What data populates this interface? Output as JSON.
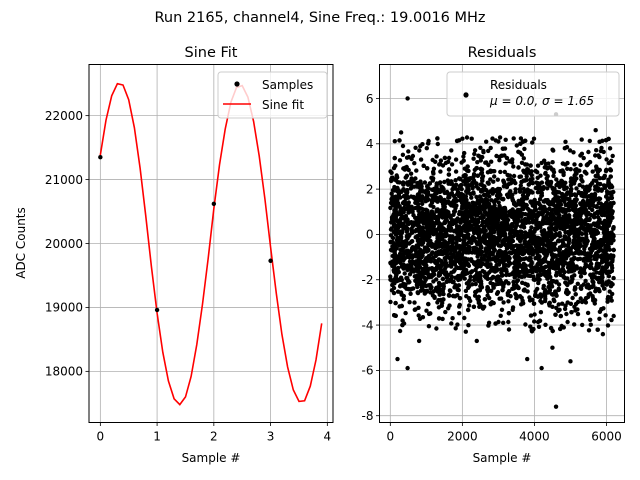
{
  "suptitle": "Run 2165, channel4, Sine Freq.: 19.0016 MHz",
  "chart_data": [
    {
      "type": "line",
      "title": "Sine Fit",
      "xlabel": "Sample #",
      "ylabel": "ADC Counts",
      "xlim": [
        -0.2,
        4.1
      ],
      "ylim": [
        17200,
        22800
      ],
      "xticks": [
        0,
        1,
        2,
        3,
        4
      ],
      "yticks": [
        18000,
        19000,
        20000,
        21000,
        22000
      ],
      "grid": true,
      "legend_position": "upper right",
      "series": [
        {
          "name": "Samples",
          "kind": "scatter",
          "color": "#000000",
          "x": [
            0,
            1,
            2,
            3
          ],
          "y": [
            21350,
            18960,
            20620,
            19730
          ]
        },
        {
          "name": "Sine fit",
          "kind": "line",
          "color": "#ff0000",
          "x": [
            0,
            0.1,
            0.2,
            0.3,
            0.4,
            0.5,
            0.6,
            0.7,
            0.8,
            0.9,
            1.0,
            1.1,
            1.2,
            1.3,
            1.4,
            1.5,
            1.6,
            1.7,
            1.8,
            1.9,
            2.0,
            2.1,
            2.2,
            2.3,
            2.4,
            2.5,
            2.6,
            2.7,
            2.8,
            2.9,
            3.0,
            3.1,
            3.2,
            3.3,
            3.4,
            3.5,
            3.6,
            3.7,
            3.8,
            3.9
          ],
          "y": [
            21380,
            21930,
            22310,
            22500,
            22480,
            22250,
            21810,
            21180,
            20440,
            19640,
            18910,
            18300,
            17850,
            17570,
            17480,
            17600,
            17920,
            18420,
            19050,
            19770,
            20540,
            21230,
            21790,
            22210,
            22440,
            22470,
            22290,
            21910,
            21370,
            20700,
            19940,
            19220,
            18580,
            18070,
            17710,
            17530,
            17540,
            17770,
            18180,
            18750
          ]
        }
      ]
    },
    {
      "type": "scatter",
      "title": "Residuals",
      "xlabel": "Sample #",
      "ylabel": "",
      "xlim": [
        -300,
        6500
      ],
      "ylim": [
        -8.3,
        7.5
      ],
      "xticks": [
        0,
        2000,
        4000,
        6000
      ],
      "yticks": [
        -8,
        -6,
        -4,
        -2,
        0,
        2,
        4,
        6
      ],
      "grid": true,
      "legend_position": "upper right",
      "series": [
        {
          "name": "Residuals",
          "color": "#000000",
          "stats_label": "μ = 0.0, σ = 1.65",
          "n_points": 6200,
          "x_range": [
            0,
            6200
          ],
          "mean": 0.0,
          "sigma": 1.65,
          "outliers": [
            {
              "x": 4600,
              "y": -7.6
            },
            {
              "x": 480,
              "y": 6.0
            },
            {
              "x": 2100,
              "y": 6.2
            },
            {
              "x": 4200,
              "y": -5.9
            },
            {
              "x": 480,
              "y": -5.9
            },
            {
              "x": 5000,
              "y": -5.6
            },
            {
              "x": 200,
              "y": -5.5
            },
            {
              "x": 3800,
              "y": -5.5
            },
            {
              "x": 4500,
              "y": -5.0
            },
            {
              "x": 300,
              "y": 4.5
            },
            {
              "x": 4600,
              "y": 5.3
            },
            {
              "x": 5700,
              "y": 4.6
            },
            {
              "x": 5900,
              "y": -4.4
            },
            {
              "x": 6200,
              "y": -3.6
            },
            {
              "x": 6100,
              "y": 3.8
            },
            {
              "x": 2400,
              "y": -4.7
            },
            {
              "x": 800,
              "y": -4.7
            }
          ]
        }
      ]
    }
  ]
}
